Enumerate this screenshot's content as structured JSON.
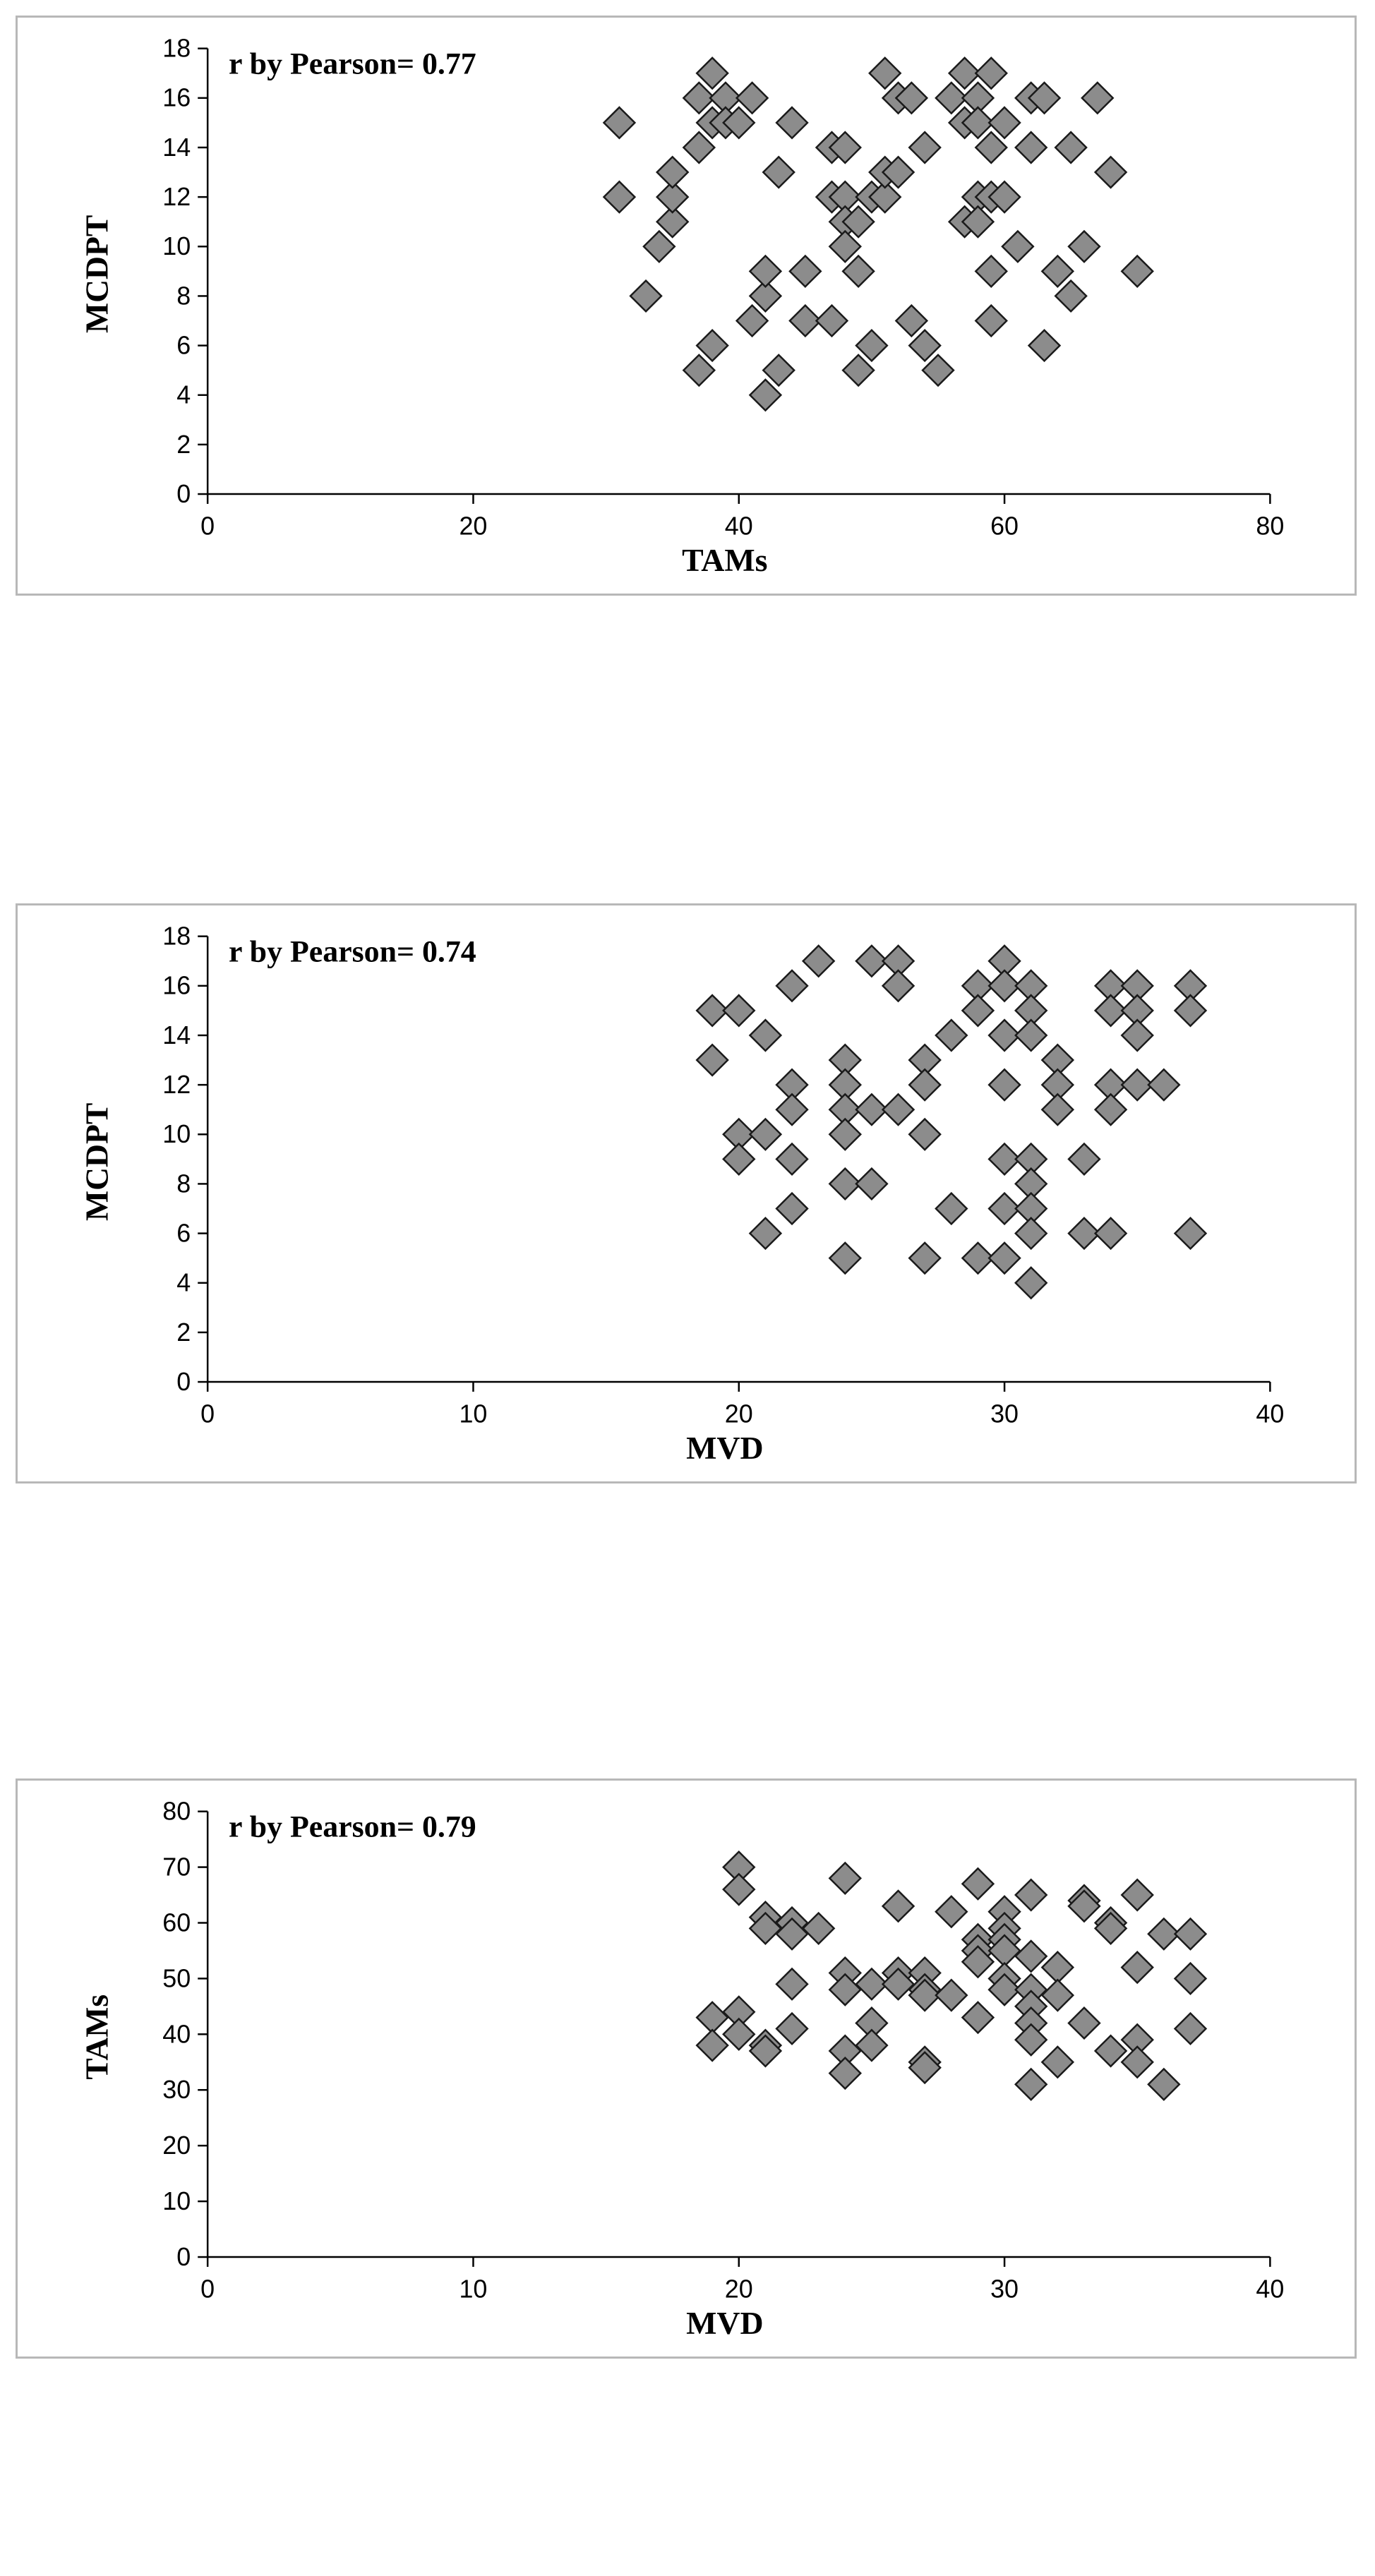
{
  "chart_data": [
    {
      "type": "scatter",
      "title": "",
      "annotation": "r by Pearson= 0.77",
      "xlabel": "TAMs",
      "ylabel": "MCDPT",
      "xlim": [
        0,
        80
      ],
      "ylim": [
        0,
        18
      ],
      "xticks": [
        0,
        20,
        40,
        60,
        80
      ],
      "yticks": [
        0,
        2,
        4,
        6,
        8,
        10,
        12,
        14,
        16,
        18
      ],
      "grid": false,
      "marker": "diamond",
      "marker_color": "#8c8c8c",
      "series": [
        {
          "points": [
            [
              31,
              15
            ],
            [
              31,
              12
            ],
            [
              33,
              8
            ],
            [
              34,
              10
            ],
            [
              35,
              11
            ],
            [
              35,
              12
            ],
            [
              35,
              13
            ],
            [
              37,
              5
            ],
            [
              37,
              14
            ],
            [
              37,
              16
            ],
            [
              38,
              6
            ],
            [
              38,
              17
            ],
            [
              38,
              15
            ],
            [
              39,
              16
            ],
            [
              39,
              15
            ],
            [
              40,
              15
            ],
            [
              41,
              16
            ],
            [
              41,
              7
            ],
            [
              42,
              4
            ],
            [
              42,
              8
            ],
            [
              42,
              9
            ],
            [
              43,
              5
            ],
            [
              43,
              13
            ],
            [
              44,
              15
            ],
            [
              45,
              9
            ],
            [
              45,
              7
            ],
            [
              47,
              14
            ],
            [
              47,
              12
            ],
            [
              47,
              7
            ],
            [
              48,
              14
            ],
            [
              48,
              12
            ],
            [
              48,
              11
            ],
            [
              48,
              10
            ],
            [
              49,
              9
            ],
            [
              49,
              11
            ],
            [
              49,
              5
            ],
            [
              50,
              12
            ],
            [
              50,
              6
            ],
            [
              51,
              12
            ],
            [
              51,
              13
            ],
            [
              51,
              17
            ],
            [
              52,
              16
            ],
            [
              52,
              13
            ],
            [
              53,
              16
            ],
            [
              53,
              7
            ],
            [
              54,
              14
            ],
            [
              54,
              6
            ],
            [
              55,
              5
            ],
            [
              56,
              16
            ],
            [
              57,
              17
            ],
            [
              57,
              15
            ],
            [
              57,
              11
            ],
            [
              58,
              16
            ],
            [
              58,
              15
            ],
            [
              58,
              12
            ],
            [
              58,
              11
            ],
            [
              59,
              17
            ],
            [
              59,
              14
            ],
            [
              59,
              12
            ],
            [
              59,
              9
            ],
            [
              59,
              7
            ],
            [
              60,
              15
            ],
            [
              60,
              12
            ],
            [
              61,
              10
            ],
            [
              62,
              16
            ],
            [
              62,
              14
            ],
            [
              63,
              16
            ],
            [
              63,
              6
            ],
            [
              64,
              9
            ],
            [
              65,
              14
            ],
            [
              65,
              8
            ],
            [
              66,
              10
            ],
            [
              67,
              16
            ],
            [
              68,
              13
            ],
            [
              70,
              9
            ]
          ]
        }
      ]
    },
    {
      "type": "scatter",
      "title": "",
      "annotation": "r by Pearson= 0.74",
      "xlabel": "MVD",
      "ylabel": "MCDPT",
      "xlim": [
        0,
        40
      ],
      "ylim": [
        0,
        18
      ],
      "xticks": [
        0,
        10,
        20,
        30,
        40
      ],
      "yticks": [
        0,
        2,
        4,
        6,
        8,
        10,
        12,
        14,
        16,
        18
      ],
      "grid": false,
      "marker": "diamond",
      "marker_color": "#8c8c8c",
      "series": [
        {
          "points": [
            [
              19,
              15
            ],
            [
              19,
              13
            ],
            [
              20,
              15
            ],
            [
              20,
              10
            ],
            [
              20,
              9
            ],
            [
              21,
              14
            ],
            [
              21,
              10
            ],
            [
              21,
              6
            ],
            [
              22,
              16
            ],
            [
              22,
              12
            ],
            [
              22,
              11
            ],
            [
              22,
              9
            ],
            [
              22,
              7
            ],
            [
              23,
              17
            ],
            [
              24,
              13
            ],
            [
              24,
              12
            ],
            [
              24,
              11
            ],
            [
              24,
              10
            ],
            [
              24,
              8
            ],
            [
              24,
              5
            ],
            [
              25,
              17
            ],
            [
              25,
              11
            ],
            [
              25,
              8
            ],
            [
              26,
              17
            ],
            [
              26,
              16
            ],
            [
              26,
              11
            ],
            [
              27,
              13
            ],
            [
              27,
              12
            ],
            [
              27,
              10
            ],
            [
              27,
              5
            ],
            [
              28,
              14
            ],
            [
              28,
              7
            ],
            [
              29,
              16
            ],
            [
              29,
              15
            ],
            [
              29,
              5
            ],
            [
              30,
              17
            ],
            [
              30,
              16
            ],
            [
              30,
              14
            ],
            [
              30,
              12
            ],
            [
              30,
              9
            ],
            [
              30,
              7
            ],
            [
              30,
              5
            ],
            [
              31,
              16
            ],
            [
              31,
              15
            ],
            [
              31,
              14
            ],
            [
              31,
              9
            ],
            [
              31,
              8
            ],
            [
              31,
              7
            ],
            [
              31,
              6
            ],
            [
              31,
              4
            ],
            [
              32,
              13
            ],
            [
              32,
              12
            ],
            [
              32,
              11
            ],
            [
              33,
              9
            ],
            [
              33,
              6
            ],
            [
              34,
              16
            ],
            [
              34,
              15
            ],
            [
              34,
              12
            ],
            [
              34,
              11
            ],
            [
              34,
              6
            ],
            [
              35,
              16
            ],
            [
              35,
              15
            ],
            [
              35,
              14
            ],
            [
              35,
              12
            ],
            [
              36,
              12
            ],
            [
              37,
              16
            ],
            [
              37,
              15
            ],
            [
              37,
              6
            ]
          ]
        }
      ]
    },
    {
      "type": "scatter",
      "title": "",
      "annotation": "r by Pearson= 0.79",
      "xlabel": "MVD",
      "ylabel": "TAMs",
      "xlim": [
        0,
        40
      ],
      "ylim": [
        0,
        80
      ],
      "xticks": [
        0,
        10,
        20,
        30,
        40
      ],
      "yticks": [
        0,
        10,
        20,
        30,
        40,
        50,
        60,
        70,
        80
      ],
      "grid": false,
      "marker": "diamond",
      "marker_color": "#8c8c8c",
      "series": [
        {
          "points": [
            [
              19,
              43
            ],
            [
              19,
              38
            ],
            [
              20,
              70
            ],
            [
              20,
              66
            ],
            [
              20,
              44
            ],
            [
              20,
              40
            ],
            [
              21,
              61
            ],
            [
              21,
              59
            ],
            [
              21,
              38
            ],
            [
              21,
              37
            ],
            [
              22,
              60
            ],
            [
              22,
              58
            ],
            [
              22,
              49
            ],
            [
              22,
              41
            ],
            [
              23,
              59
            ],
            [
              24,
              68
            ],
            [
              24,
              51
            ],
            [
              24,
              48
            ],
            [
              24,
              37
            ],
            [
              24,
              33
            ],
            [
              25,
              49
            ],
            [
              25,
              42
            ],
            [
              25,
              38
            ],
            [
              26,
              63
            ],
            [
              26,
              51
            ],
            [
              26,
              49
            ],
            [
              27,
              51
            ],
            [
              27,
              48
            ],
            [
              27,
              47
            ],
            [
              27,
              35
            ],
            [
              27,
              34
            ],
            [
              28,
              62
            ],
            [
              28,
              47
            ],
            [
              29,
              67
            ],
            [
              29,
              57
            ],
            [
              29,
              55
            ],
            [
              29,
              53
            ],
            [
              29,
              43
            ],
            [
              30,
              62
            ],
            [
              30,
              59
            ],
            [
              30,
              57
            ],
            [
              30,
              55
            ],
            [
              30,
              50
            ],
            [
              30,
              48
            ],
            [
              31,
              65
            ],
            [
              31,
              54
            ],
            [
              31,
              48
            ],
            [
              31,
              45
            ],
            [
              31,
              42
            ],
            [
              31,
              39
            ],
            [
              31,
              31
            ],
            [
              32,
              52
            ],
            [
              32,
              47
            ],
            [
              32,
              35
            ],
            [
              33,
              64
            ],
            [
              33,
              63
            ],
            [
              33,
              42
            ],
            [
              34,
              60
            ],
            [
              34,
              59
            ],
            [
              34,
              37
            ],
            [
              35,
              65
            ],
            [
              35,
              52
            ],
            [
              35,
              39
            ],
            [
              35,
              35
            ],
            [
              36,
              58
            ],
            [
              36,
              31
            ],
            [
              37,
              58
            ],
            [
              37,
              50
            ],
            [
              37,
              41
            ]
          ]
        }
      ]
    }
  ]
}
